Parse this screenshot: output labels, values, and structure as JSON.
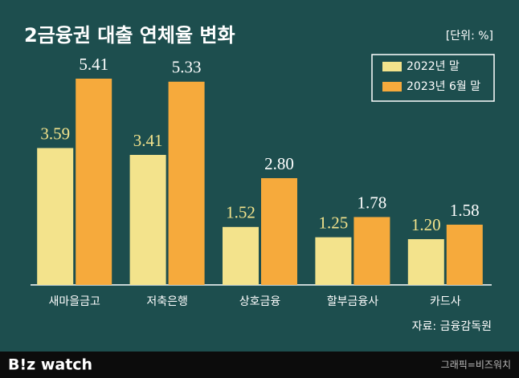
{
  "chart_data": {
    "type": "bar",
    "title": "2금융권 대출 연체율 변화",
    "unit_label": "[단위: %]",
    "categories": [
      "새마을금고",
      "저축은행",
      "상호금융",
      "할부금융사",
      "카드사"
    ],
    "series": [
      {
        "name": "2022년 말",
        "color": "#f3e38c",
        "values": [
          3.59,
          3.41,
          1.52,
          1.25,
          1.2
        ],
        "value_labels": [
          "3.59",
          "3.41",
          "1.52",
          "1.25",
          "1.20"
        ]
      },
      {
        "name": "2023년 6월 말",
        "color": "#f6aa3c",
        "values": [
          5.41,
          5.33,
          2.8,
          1.78,
          1.58
        ],
        "value_labels": [
          "5.41",
          "5.33",
          "2.80",
          "1.78",
          "1.58"
        ]
      }
    ],
    "source": "자료: 금융감독원",
    "brand": "B!z watch",
    "credit": "그래픽=비즈워치"
  }
}
